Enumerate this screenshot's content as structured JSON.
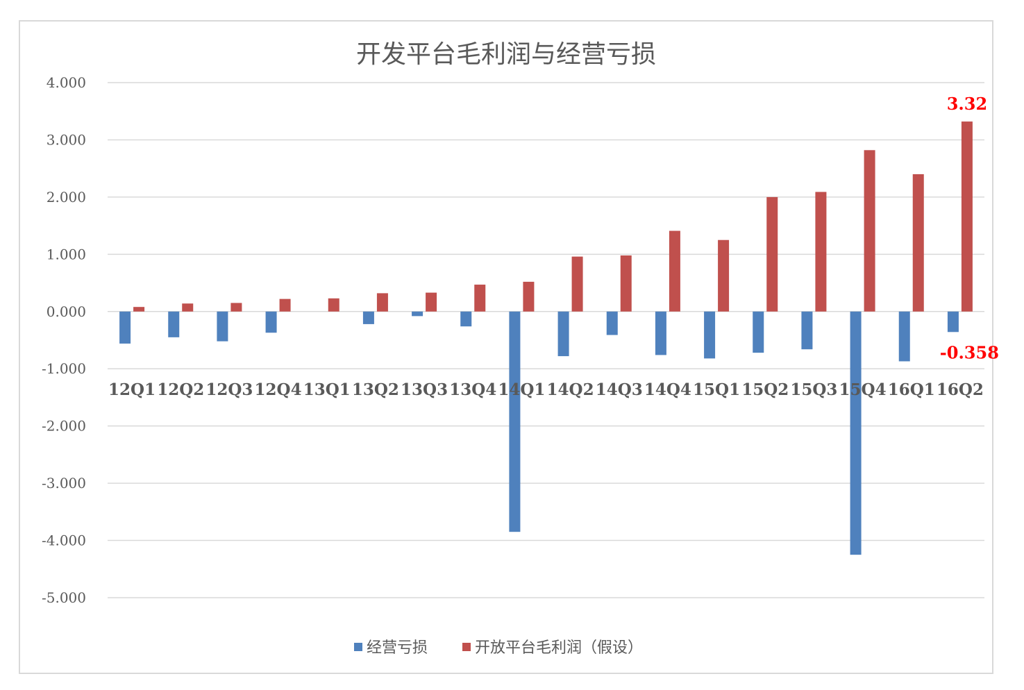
{
  "chart_data": {
    "type": "bar",
    "title": "开发平台毛利润与经营亏损",
    "categories": [
      "12Q1",
      "12Q2",
      "12Q3",
      "12Q4",
      "13Q1",
      "13Q2",
      "13Q3",
      "13Q4",
      "14Q1",
      "14Q2",
      "14Q3",
      "14Q4",
      "15Q1",
      "15Q2",
      "15Q3",
      "15Q4",
      "16Q1",
      "16Q2"
    ],
    "series": [
      {
        "name": "经营亏损",
        "color": "#4f81bd",
        "values": [
          -0.56,
          -0.45,
          -0.52,
          -0.37,
          0.0,
          -0.22,
          -0.08,
          -0.26,
          -3.85,
          -0.78,
          -0.41,
          -0.76,
          -0.82,
          -0.72,
          -0.66,
          -4.25,
          -0.87,
          -0.358
        ]
      },
      {
        "name": "开放平台毛利润（假设）",
        "color": "#c0504d",
        "values": [
          0.08,
          0.14,
          0.15,
          0.22,
          0.23,
          0.32,
          0.33,
          0.47,
          0.52,
          0.96,
          0.98,
          1.41,
          1.25,
          2.0,
          2.09,
          2.82,
          2.4,
          3.32
        ]
      }
    ],
    "ylim": [
      -5,
      4
    ],
    "yticks": [
      "-5.000",
      "-4.000",
      "-3.000",
      "-2.000",
      "-1.000",
      "0.000",
      "1.000",
      "2.000",
      "3.000",
      "4.000"
    ],
    "grid": true,
    "legend_position": "bottom",
    "data_labels": [
      {
        "series": 1,
        "index": 17,
        "text": "3.32"
      },
      {
        "series": 0,
        "index": 17,
        "text": "-0.358"
      }
    ],
    "label_color": "#ff0000"
  }
}
